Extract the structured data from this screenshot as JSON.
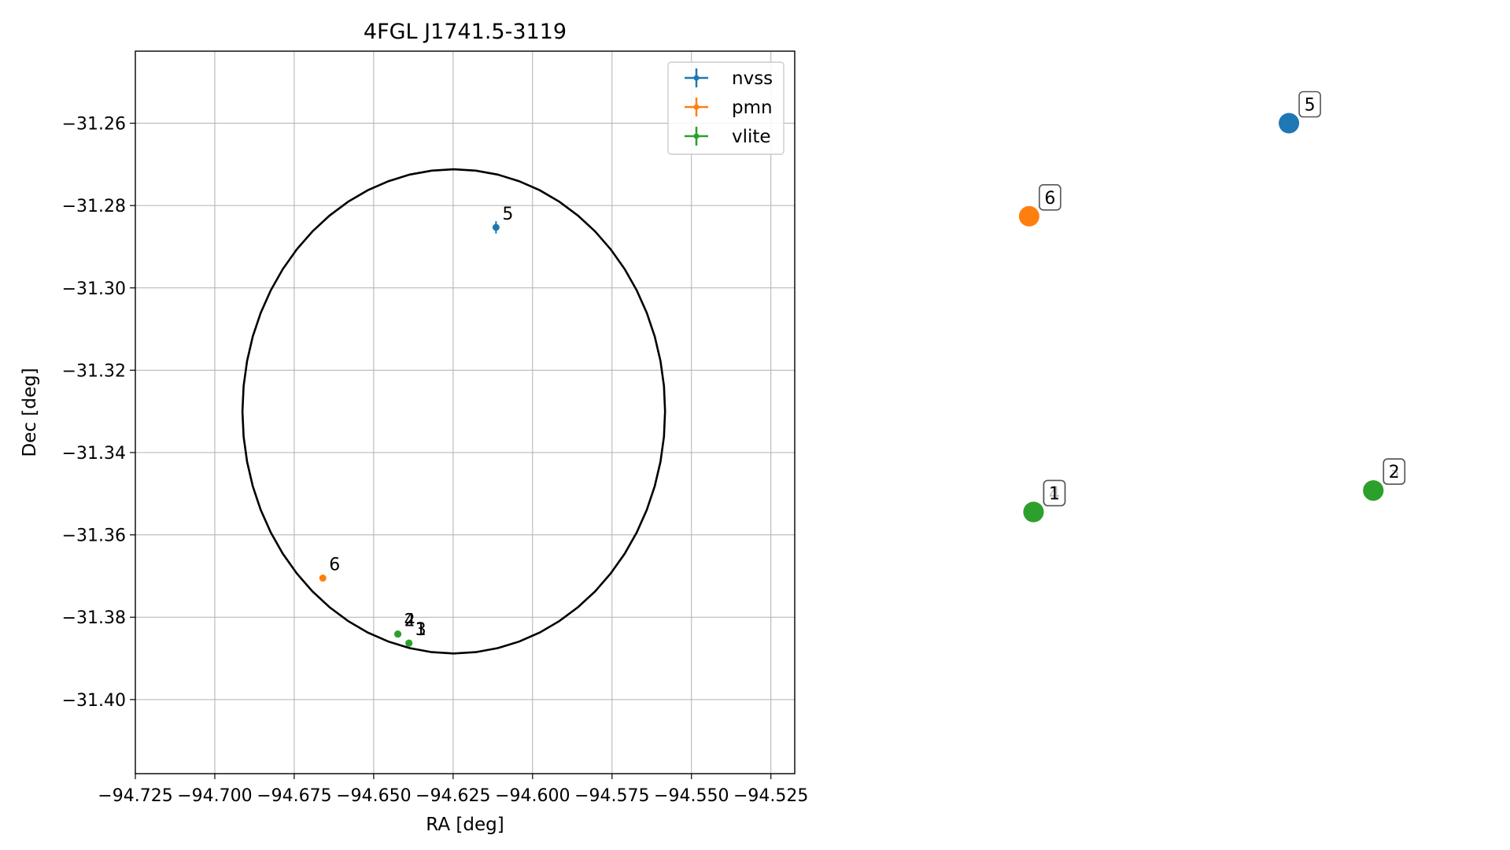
{
  "chart_data": [
    {
      "type": "scatter",
      "title": "4FGL J1741.5-3119",
      "xlabel": "RA [deg]",
      "ylabel": "Dec [deg]",
      "xlim": [
        -94.725,
        -94.5175
      ],
      "ylim": [
        -31.418,
        -31.2425
      ],
      "grid": true,
      "x_ticks": [
        -94.725,
        -94.7,
        -94.675,
        -94.65,
        -94.625,
        -94.6,
        -94.575,
        -94.55,
        -94.525
      ],
      "x_tick_labels": [
        "−94.725",
        "−94.700",
        "−94.675",
        "−94.650",
        "−94.625",
        "−94.600",
        "−94.575",
        "−94.550",
        "−94.525"
      ],
      "y_ticks": [
        -31.26,
        -31.28,
        -31.3,
        -31.32,
        -31.34,
        -31.36,
        -31.38,
        -31.4
      ],
      "y_tick_labels": [
        "−31.26",
        "−31.28",
        "−31.30",
        "−31.32",
        "−31.34",
        "−31.36",
        "−31.38",
        "−31.40"
      ],
      "legend_position": "top-right",
      "ellipse": {
        "center_ra": -94.6248,
        "center_dec": -31.33,
        "semi_major_ra": 0.0665,
        "semi_minor_dec": 0.0588
      },
      "series": [
        {
          "name": "nvss",
          "color": "#1f77b4",
          "points": [
            {
              "label": "5",
              "x": -94.6115,
              "y": -31.2853,
              "xerr": 0.0006,
              "yerr": 0.0015
            }
          ]
        },
        {
          "name": "pmn",
          "color": "#ff7f0e",
          "points": [
            {
              "label": "6",
              "x": -94.666,
              "y": -31.3705,
              "xerr": 0.0,
              "yerr": 0.0
            }
          ]
        },
        {
          "name": "vlite",
          "color": "#2ca02c",
          "points": [
            {
              "label": "4",
              "x": -94.6424,
              "y": -31.3841,
              "xerr": 0.0,
              "yerr": 0.0
            },
            {
              "label": "2",
              "x": -94.6424,
              "y": -31.3841,
              "xerr": 0.0,
              "yerr": 0.0
            },
            {
              "label": "1",
              "x": -94.6389,
              "y": -31.3863,
              "xerr": 0.0,
              "yerr": 0.0
            },
            {
              "label": "3",
              "x": -94.6389,
              "y": -31.3863,
              "xerr": 0.0,
              "yerr": 0.0
            }
          ]
        }
      ]
    },
    {
      "type": "scatter",
      "title": "",
      "axes_visible": false,
      "points": [
        {
          "label": "5",
          "color": "#1f77b4",
          "x": 0.76,
          "y": 0.89
        },
        {
          "label": "6",
          "color": "#ff7f0e",
          "x": 0.11,
          "y": 0.708
        },
        {
          "label": "4",
          "color": "#2ca02c",
          "x": 0.121,
          "y": 0.13
        },
        {
          "label": "1",
          "color": "#2ca02c",
          "x": 0.121,
          "y": 0.13
        },
        {
          "label": "3",
          "color": "#2ca02c",
          "x": 0.971,
          "y": 0.172
        },
        {
          "label": "2",
          "color": "#2ca02c",
          "x": 0.971,
          "y": 0.172
        }
      ]
    }
  ]
}
